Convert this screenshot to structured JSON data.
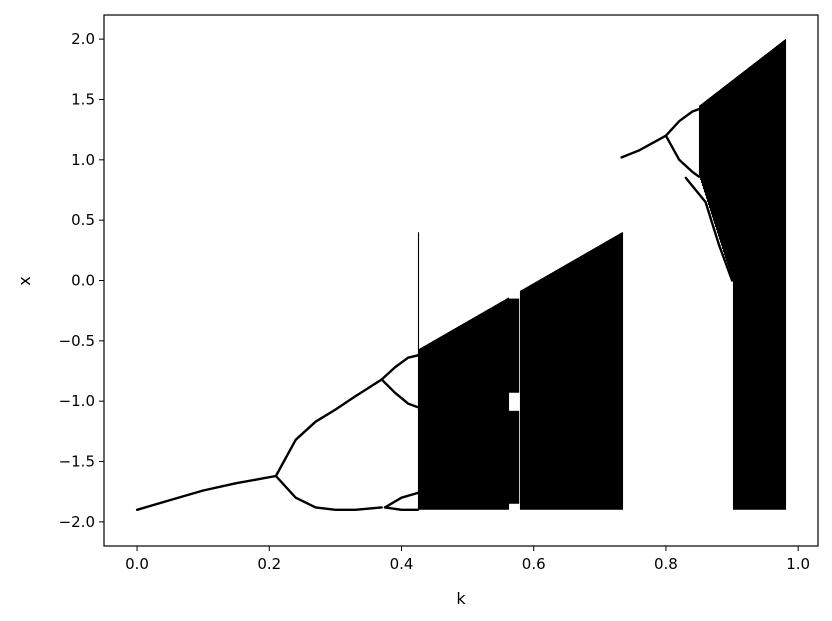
{
  "chart_data": {
    "type": "scatter",
    "title": "",
    "xlabel": "k",
    "ylabel": "x",
    "xlim": [
      -0.05,
      1.03
    ],
    "ylim": [
      -2.2,
      2.2
    ],
    "grid": false,
    "legend": "none",
    "mark_color": "#000000",
    "xticks": [
      0.0,
      0.2,
      0.4,
      0.6,
      0.8,
      1.0
    ],
    "xtick_labels": [
      "0.0",
      "0.2",
      "0.4",
      "0.6",
      "0.8",
      "1.0"
    ],
    "yticks": [
      -2.0,
      -1.5,
      -1.0,
      -0.5,
      0.0,
      0.5,
      1.0,
      1.5,
      2.0
    ],
    "ytick_labels": [
      "−2.0",
      "−1.5",
      "−1.0",
      "−0.5",
      "0.0",
      "0.5",
      "1.0",
      "1.5",
      "2.0"
    ],
    "branches": [
      {
        "name": "fixed-point-branch",
        "points": [
          [
            0.0,
            -1.9
          ],
          [
            0.05,
            -1.82
          ],
          [
            0.1,
            -1.74
          ],
          [
            0.15,
            -1.68
          ],
          [
            0.21,
            -1.62
          ]
        ]
      },
      {
        "name": "period-2-upper",
        "points": [
          [
            0.21,
            -1.62
          ],
          [
            0.24,
            -1.32
          ],
          [
            0.27,
            -1.17
          ],
          [
            0.3,
            -1.07
          ],
          [
            0.33,
            -0.96
          ],
          [
            0.37,
            -0.82
          ]
        ]
      },
      {
        "name": "period-2-lower",
        "points": [
          [
            0.21,
            -1.62
          ],
          [
            0.24,
            -1.8
          ],
          [
            0.27,
            -1.88
          ],
          [
            0.3,
            -1.9
          ],
          [
            0.33,
            -1.9
          ],
          [
            0.37,
            -1.88
          ]
        ]
      },
      {
        "name": "period-4-upper-a",
        "points": [
          [
            0.37,
            -0.82
          ],
          [
            0.39,
            -0.72
          ],
          [
            0.41,
            -0.64
          ],
          [
            0.425,
            -0.62
          ]
        ]
      },
      {
        "name": "period-4-upper-b",
        "points": [
          [
            0.37,
            -0.82
          ],
          [
            0.39,
            -0.93
          ],
          [
            0.41,
            -1.02
          ],
          [
            0.425,
            -1.05
          ]
        ]
      },
      {
        "name": "period-4-lower-a",
        "points": [
          [
            0.375,
            -1.88
          ],
          [
            0.4,
            -1.8
          ],
          [
            0.425,
            -1.76
          ]
        ]
      },
      {
        "name": "period-4-lower-b",
        "points": [
          [
            0.375,
            -1.88
          ],
          [
            0.4,
            -1.9
          ],
          [
            0.425,
            -1.9
          ]
        ]
      },
      {
        "name": "right-branch",
        "points": [
          [
            0.733,
            1.02
          ],
          [
            0.76,
            1.08
          ],
          [
            0.8,
            1.2
          ]
        ]
      },
      {
        "name": "right-period-2-upper",
        "points": [
          [
            0.8,
            1.2
          ],
          [
            0.82,
            1.32
          ],
          [
            0.84,
            1.4
          ],
          [
            0.85,
            1.42
          ]
        ]
      },
      {
        "name": "right-period-2-lower",
        "points": [
          [
            0.8,
            1.2
          ],
          [
            0.82,
            1.0
          ],
          [
            0.84,
            0.9
          ],
          [
            0.85,
            0.86
          ]
        ]
      },
      {
        "name": "right-lower-edge",
        "points": [
          [
            0.83,
            0.85
          ],
          [
            0.86,
            0.65
          ],
          [
            0.88,
            0.3
          ],
          [
            0.9,
            0.0
          ]
        ]
      }
    ],
    "chaotic_bands": [
      {
        "name": "left-chaotic-region",
        "k_start": 0.425,
        "k_end": 0.733,
        "x_min": -1.9,
        "top_boundary": [
          [
            0.425,
            -0.57
          ],
          [
            0.733,
            0.4
          ]
        ],
        "windows": [
          {
            "k_start": 0.562,
            "k_end": 0.578,
            "x_ranges": [
              [
                -0.15,
                -0.93
              ],
              [
                -1.08,
                -1.85
              ]
            ]
          }
        ]
      },
      {
        "name": "right-chaotic-region",
        "k_start": 0.85,
        "k_end": 0.98,
        "top_boundary": [
          [
            0.85,
            1.45
          ],
          [
            0.98,
            2.0
          ]
        ],
        "bottom_boundary": [
          [
            0.85,
            0.86
          ],
          [
            0.9,
            0.0
          ],
          [
            0.9,
            -1.9
          ],
          [
            0.98,
            -1.9
          ]
        ]
      }
    ]
  }
}
